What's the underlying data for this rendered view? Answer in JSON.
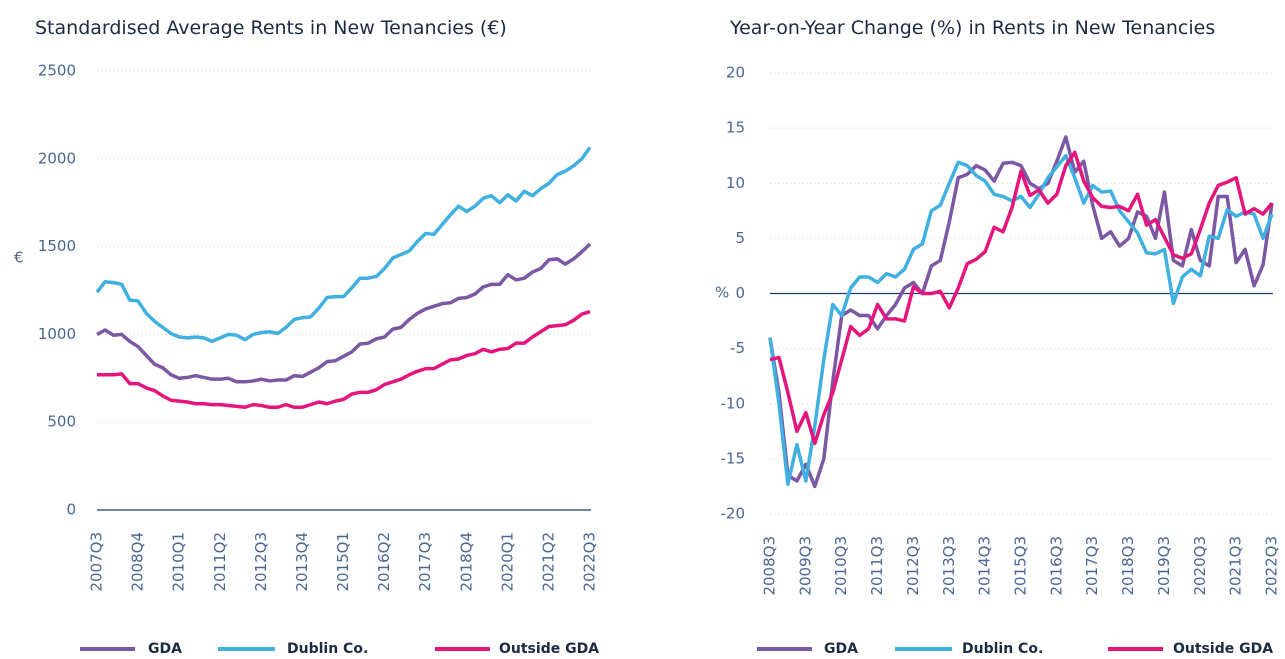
{
  "chart_data": [
    {
      "type": "line",
      "title": "Standardised Average Rents in New Tenancies (€)",
      "y_label": "€",
      "categories": [
        "2007Q3",
        null,
        null,
        null,
        null,
        "2008Q4",
        null,
        null,
        null,
        null,
        "2010Q1",
        null,
        null,
        null,
        null,
        "2011Q2",
        null,
        null,
        null,
        null,
        "2012Q3",
        null,
        null,
        null,
        null,
        "2013Q4",
        null,
        null,
        null,
        null,
        "2015Q1",
        null,
        null,
        null,
        null,
        "2016Q2",
        null,
        null,
        null,
        null,
        "2017Q3",
        null,
        null,
        null,
        null,
        "2018Q4",
        null,
        null,
        null,
        null,
        "2020Q1",
        null,
        null,
        null,
        null,
        "2021Q2",
        null,
        null,
        null,
        null,
        "2022Q3"
      ],
      "ylim": [
        0,
        2500
      ],
      "yticks": [
        0,
        500,
        1000,
        1500,
        2000,
        2500
      ],
      "grid": true,
      "series": [
        {
          "name": "GDA",
          "color": "#7b57a4",
          "values": [
            1000,
            1025,
            995,
            1000,
            960,
            930,
            880,
            830,
            810,
            770,
            750,
            755,
            765,
            755,
            745,
            745,
            750,
            730,
            730,
            735,
            745,
            735,
            740,
            740,
            765,
            760,
            785,
            810,
            845,
            850,
            875,
            900,
            945,
            950,
            975,
            985,
            1030,
            1040,
            1085,
            1120,
            1145,
            1160,
            1175,
            1180,
            1205,
            1210,
            1230,
            1270,
            1285,
            1285,
            1340,
            1310,
            1320,
            1355,
            1375,
            1425,
            1430,
            1400,
            1430,
            1470,
            1515
          ]
        },
        {
          "name": "Dublin Co.",
          "color": "#3fb0e0",
          "values": [
            1240,
            1300,
            1295,
            1285,
            1195,
            1190,
            1120,
            1075,
            1040,
            1005,
            985,
            980,
            985,
            980,
            960,
            980,
            1000,
            995,
            970,
            1000,
            1010,
            1015,
            1005,
            1040,
            1085,
            1095,
            1100,
            1150,
            1210,
            1215,
            1215,
            1265,
            1320,
            1320,
            1330,
            1375,
            1435,
            1455,
            1475,
            1530,
            1575,
            1570,
            1625,
            1680,
            1730,
            1700,
            1730,
            1775,
            1790,
            1750,
            1795,
            1760,
            1815,
            1790,
            1830,
            1860,
            1910,
            1930,
            1960,
            2000,
            2065
          ]
        },
        {
          "name": "Outside GDA",
          "color": "#e5157e",
          "values": [
            770,
            770,
            770,
            775,
            720,
            720,
            695,
            680,
            650,
            625,
            620,
            615,
            605,
            605,
            600,
            600,
            595,
            590,
            585,
            600,
            595,
            585,
            585,
            600,
            585,
            585,
            600,
            615,
            605,
            620,
            630,
            660,
            670,
            670,
            685,
            715,
            730,
            745,
            770,
            790,
            805,
            805,
            830,
            855,
            860,
            880,
            890,
            915,
            900,
            915,
            920,
            950,
            950,
            985,
            1015,
            1045,
            1050,
            1055,
            1080,
            1115,
            1130
          ]
        }
      ]
    },
    {
      "type": "line",
      "title": "Year-on-Year Change (%) in Rents in New Tenancies",
      "y_label": "%",
      "categories": [
        "2008Q3",
        null,
        null,
        null,
        "2009Q3",
        null,
        null,
        null,
        "2010Q3",
        null,
        null,
        null,
        "2011Q3",
        null,
        null,
        null,
        "2012Q3",
        null,
        null,
        null,
        "2013Q3",
        null,
        null,
        null,
        "2014Q3",
        null,
        null,
        null,
        "2015Q3",
        null,
        null,
        null,
        "2016Q3",
        null,
        null,
        null,
        "2017Q3",
        null,
        null,
        null,
        "2018Q3",
        null,
        null,
        null,
        "2019Q3",
        null,
        null,
        null,
        "2020Q3",
        null,
        null,
        null,
        "2021Q3",
        null,
        null,
        null,
        "2022Q3"
      ],
      "ylim": [
        -20,
        20
      ],
      "yticks": [
        -20,
        -15,
        -10,
        -5,
        0,
        5,
        10,
        15,
        20
      ],
      "grid": true,
      "series": [
        {
          "name": "GDA",
          "color": "#7b57a4",
          "values": [
            -4,
            -9,
            -16.5,
            -17,
            -15.5,
            -17.5,
            -15,
            -8,
            -2,
            -1.5,
            -2,
            -2,
            -3.2,
            -2,
            -1,
            0.5,
            1,
            0,
            2.5,
            3,
            6.5,
            10.5,
            10.8,
            11.6,
            11.2,
            10.2,
            11.8,
            11.9,
            11.6,
            10,
            9.5,
            10,
            12,
            14.2,
            11,
            12,
            8,
            5,
            5.6,
            4.3,
            5,
            7.4,
            7,
            5,
            9.2,
            3,
            2.5,
            5.8,
            3,
            2.5,
            8.8,
            8.8,
            2.8,
            4,
            0.7,
            2.6,
            8.2
          ]
        },
        {
          "name": "Dublin Co.",
          "color": "#3fb0e0",
          "values": [
            -4,
            -10,
            -17.3,
            -13.7,
            -17,
            -12,
            -6,
            -1,
            -2,
            0.5,
            1.5,
            1.5,
            1,
            1.8,
            1.5,
            2.2,
            4,
            4.5,
            7.5,
            8,
            10,
            11.9,
            11.6,
            10.7,
            10.2,
            9,
            8.8,
            8.4,
            8.8,
            7.8,
            9,
            10.5,
            11.5,
            12.5,
            10.5,
            8.2,
            9.8,
            9.2,
            9.3,
            7.5,
            6.5,
            5.5,
            3.7,
            3.6,
            4,
            -0.9,
            1.5,
            2.2,
            1.6,
            5.2,
            5,
            7.6,
            7,
            7.4,
            7.2,
            5,
            7.2
          ]
        },
        {
          "name": "Outside GDA",
          "color": "#e5157e",
          "values": [
            -6,
            -5.8,
            -9,
            -12.5,
            -10.8,
            -13.6,
            -11,
            -9,
            -6,
            -3,
            -3.8,
            -3.2,
            -1,
            -2.3,
            -2.3,
            -2.5,
            0.6,
            0,
            0,
            0.2,
            -1.3,
            0.5,
            2.7,
            3.1,
            3.8,
            6,
            5.6,
            7.8,
            11.1,
            8.9,
            9.4,
            8.2,
            9,
            11.6,
            12.8,
            10.2,
            8.7,
            7.9,
            7.8,
            7.9,
            7.5,
            9,
            6.2,
            6.7,
            5.1,
            3.5,
            3.2,
            3.6,
            5.8,
            8.2,
            9.8,
            10.1,
            10.5,
            7.2,
            7.7,
            7.2,
            8.2
          ]
        }
      ]
    }
  ]
}
